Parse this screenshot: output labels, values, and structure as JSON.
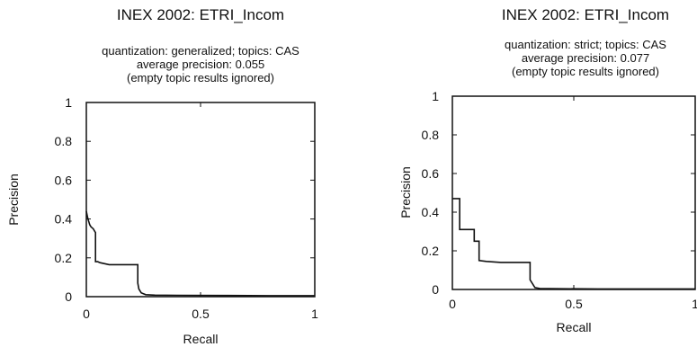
{
  "chart_data": [
    {
      "type": "line",
      "title": "INEX 2002: ETRI_Incom",
      "subtitle": [
        "quantization: generalized; topics: CAS",
        "average precision: 0.055",
        "(empty topic results ignored)"
      ],
      "xlabel": "Recall",
      "ylabel": "Precision",
      "xlim": [
        0,
        1
      ],
      "ylim": [
        0,
        1
      ],
      "xticks": [
        "0",
        "0.5",
        "1"
      ],
      "yticks": [
        "0",
        "0.2",
        "0.4",
        "0.6",
        "0.8",
        "1"
      ],
      "grid": false,
      "series": [
        {
          "x": [
            0,
            0.005,
            0.01,
            0.015,
            0.02,
            0.025,
            0.03,
            0.035,
            0.04,
            0.04,
            0.05,
            0.06,
            0.08,
            0.1,
            0.15,
            0.2,
            0.225,
            0.225,
            0.23,
            0.24,
            0.26,
            0.3,
            0.4,
            0.6,
            0.8,
            1.0
          ],
          "y": [
            0.44,
            0.41,
            0.39,
            0.37,
            0.36,
            0.355,
            0.35,
            0.34,
            0.33,
            0.18,
            0.18,
            0.175,
            0.17,
            0.165,
            0.165,
            0.165,
            0.165,
            0.07,
            0.04,
            0.02,
            0.01,
            0.008,
            0.007,
            0.006,
            0.005,
            0.005
          ]
        }
      ]
    },
    {
      "type": "line",
      "title": "INEX 2002: ETRI_Incom",
      "subtitle": [
        "quantization: strict; topics: CAS",
        "average precision: 0.077",
        "(empty topic results ignored)"
      ],
      "xlabel": "Recall",
      "ylabel": "Precision",
      "xlim": [
        0,
        1
      ],
      "ylim": [
        0,
        1
      ],
      "xticks": [
        "0",
        "0.5",
        "1"
      ],
      "yticks": [
        "0",
        "0.2",
        "0.4",
        "0.6",
        "0.8",
        "1"
      ],
      "grid": false,
      "series": [
        {
          "x": [
            0,
            0.03,
            0.03,
            0.09,
            0.09,
            0.11,
            0.11,
            0.14,
            0.2,
            0.3,
            0.32,
            0.32,
            0.34,
            0.36,
            0.4,
            0.6,
            0.8,
            1.0
          ],
          "y": [
            0.47,
            0.47,
            0.31,
            0.31,
            0.25,
            0.25,
            0.15,
            0.145,
            0.14,
            0.14,
            0.14,
            0.05,
            0.01,
            0.005,
            0.004,
            0.003,
            0.003,
            0.003
          ]
        }
      ]
    }
  ]
}
